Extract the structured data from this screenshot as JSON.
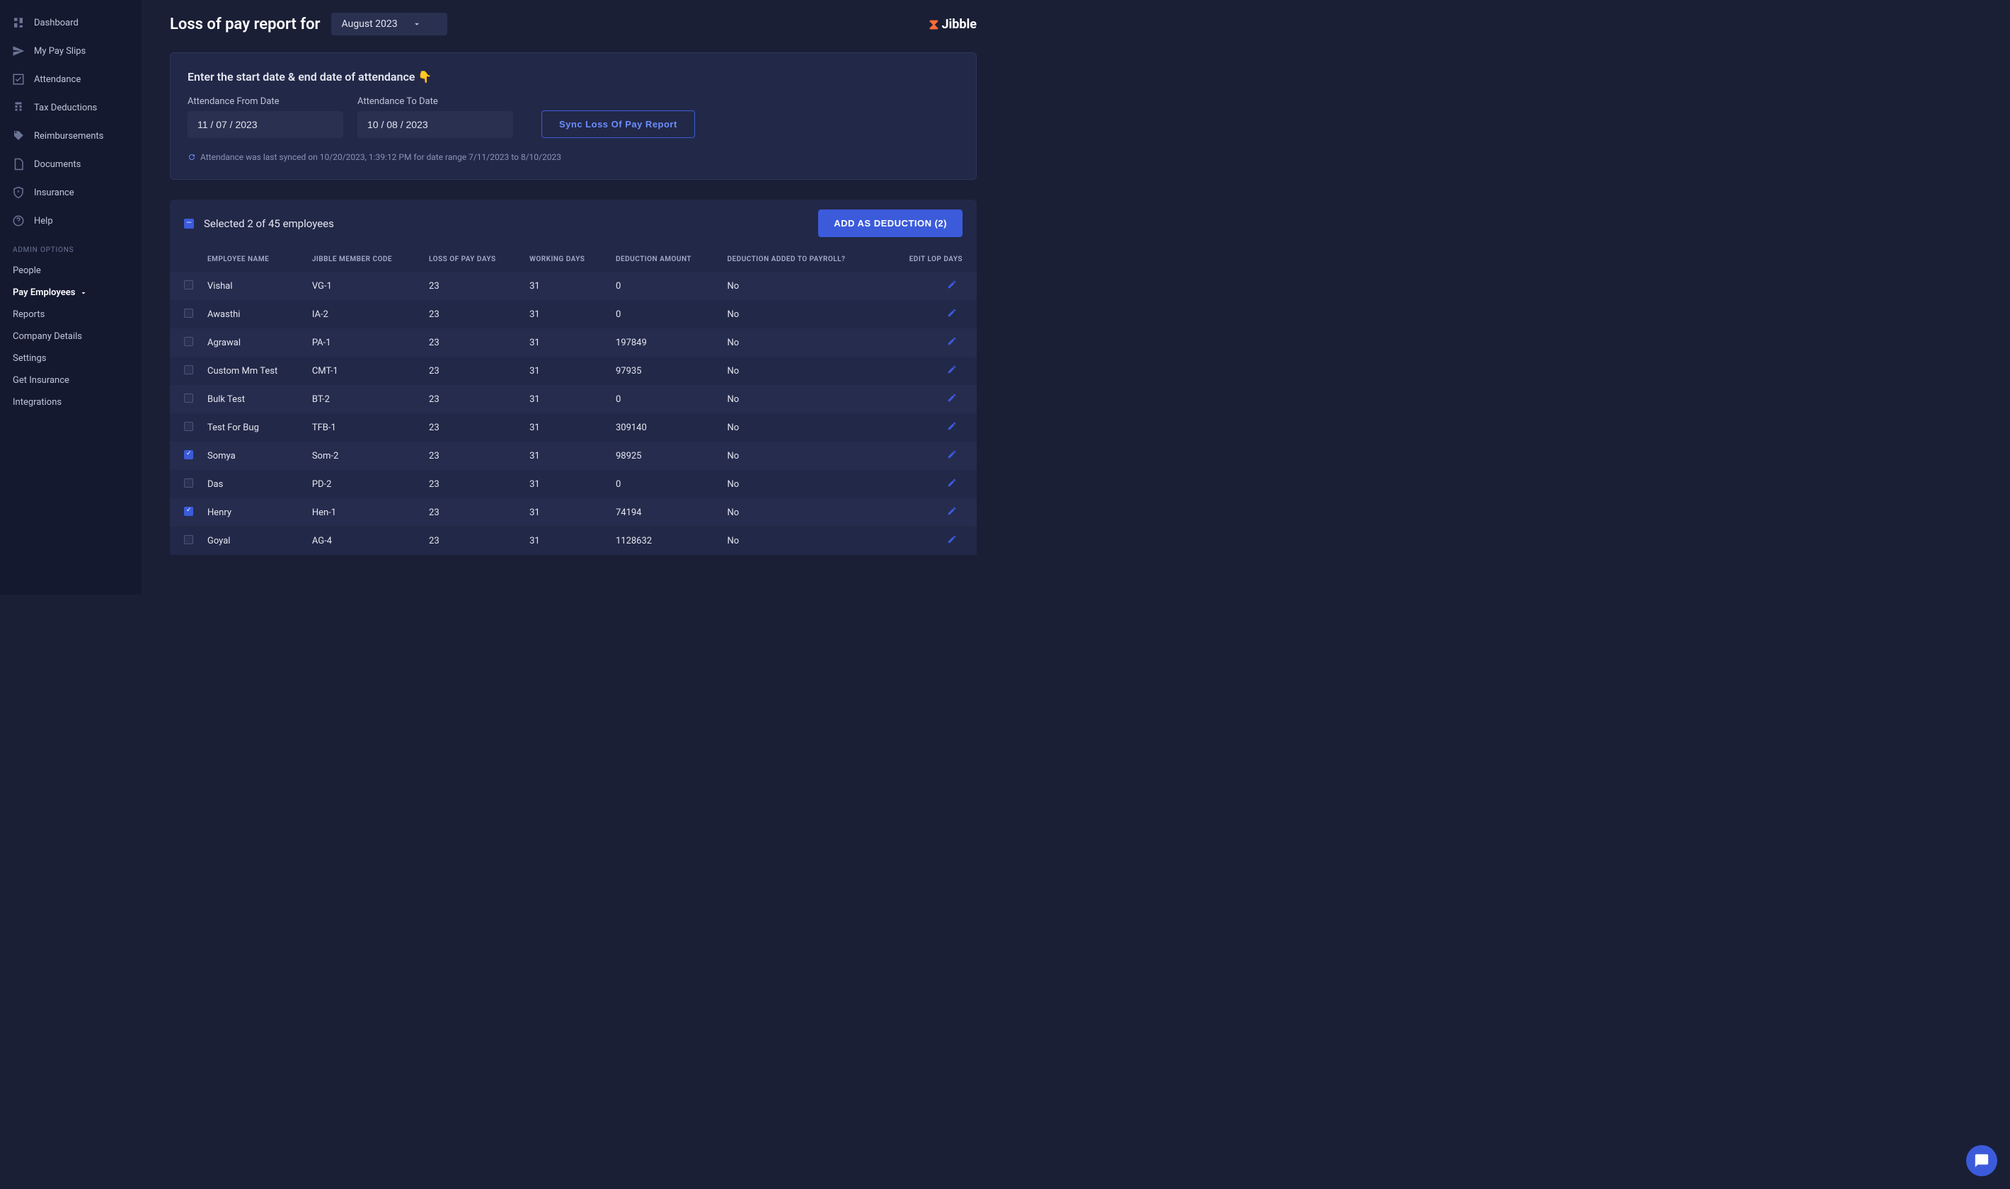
{
  "colors": {
    "bg": "#1a1f36",
    "panel": "#222847",
    "accent": "#3b5bdb",
    "text": "#e4e6f0"
  },
  "sidebar": {
    "nav": [
      {
        "label": "Dashboard",
        "icon": "dashboard"
      },
      {
        "label": "My Pay Slips",
        "icon": "send"
      },
      {
        "label": "Attendance",
        "icon": "check"
      },
      {
        "label": "Tax Deductions",
        "icon": "calc"
      },
      {
        "label": "Reimbursements",
        "icon": "tag"
      },
      {
        "label": "Documents",
        "icon": "doc"
      },
      {
        "label": "Insurance",
        "icon": "shield"
      },
      {
        "label": "Help",
        "icon": "help"
      }
    ],
    "admin_header": "ADMIN OPTIONS",
    "admin": [
      {
        "label": "People"
      },
      {
        "label": "Pay Employees",
        "active": true,
        "expandable": true
      },
      {
        "label": "Reports"
      },
      {
        "label": "Company Details"
      },
      {
        "label": "Settings"
      },
      {
        "label": "Get Insurance"
      },
      {
        "label": "Integrations"
      }
    ]
  },
  "header": {
    "title": "Loss of pay report for",
    "month": "August 2023",
    "brand": "Jibble"
  },
  "date_card": {
    "heading": "Enter the start date & end date of attendance 👇",
    "from_label": "Attendance From Date",
    "from_value": "11 / 07 / 2023",
    "to_label": "Attendance To Date",
    "to_value": "10 / 08 / 2023",
    "sync_button": "Sync Loss Of Pay Report",
    "sync_note": "Attendance was last synced on 10/20/2023, 1:39:12 PM for date range 7/11/2023 to 8/10/2023"
  },
  "table": {
    "selected_text": "Selected 2 of 45 employees",
    "add_button": "ADD AS DEDUCTION (2)",
    "columns": [
      "EMPLOYEE NAME",
      "JIBBLE MEMBER CODE",
      "LOSS OF PAY DAYS",
      "WORKING DAYS",
      "DEDUCTION AMOUNT",
      "DEDUCTION ADDED TO PAYROLL?",
      "EDIT LOP DAYS"
    ],
    "rows": [
      {
        "checked": false,
        "name": "Vishal",
        "code": "VG-1",
        "lop": "23",
        "work": "31",
        "amount": "0",
        "added": "No"
      },
      {
        "checked": false,
        "name": "Awasthi",
        "code": "IA-2",
        "lop": "23",
        "work": "31",
        "amount": "0",
        "added": "No"
      },
      {
        "checked": false,
        "name": "Agrawal",
        "code": "PA-1",
        "lop": "23",
        "work": "31",
        "amount": "197849",
        "added": "No"
      },
      {
        "checked": false,
        "name": "Custom Mm Test",
        "code": "CMT-1",
        "lop": "23",
        "work": "31",
        "amount": "97935",
        "added": "No"
      },
      {
        "checked": false,
        "name": "Bulk Test",
        "code": "BT-2",
        "lop": "23",
        "work": "31",
        "amount": "0",
        "added": "No"
      },
      {
        "checked": false,
        "name": "Test For Bug",
        "code": "TFB-1",
        "lop": "23",
        "work": "31",
        "amount": "309140",
        "added": "No"
      },
      {
        "checked": true,
        "name": "Somya",
        "code": "Som-2",
        "lop": "23",
        "work": "31",
        "amount": "98925",
        "added": "No"
      },
      {
        "checked": false,
        "name": "Das",
        "code": "PD-2",
        "lop": "23",
        "work": "31",
        "amount": "0",
        "added": "No"
      },
      {
        "checked": true,
        "name": "Henry",
        "code": "Hen-1",
        "lop": "23",
        "work": "31",
        "amount": "74194",
        "added": "No"
      },
      {
        "checked": false,
        "name": "Goyal",
        "code": "AG-4",
        "lop": "23",
        "work": "31",
        "amount": "1128632",
        "added": "No"
      }
    ]
  }
}
